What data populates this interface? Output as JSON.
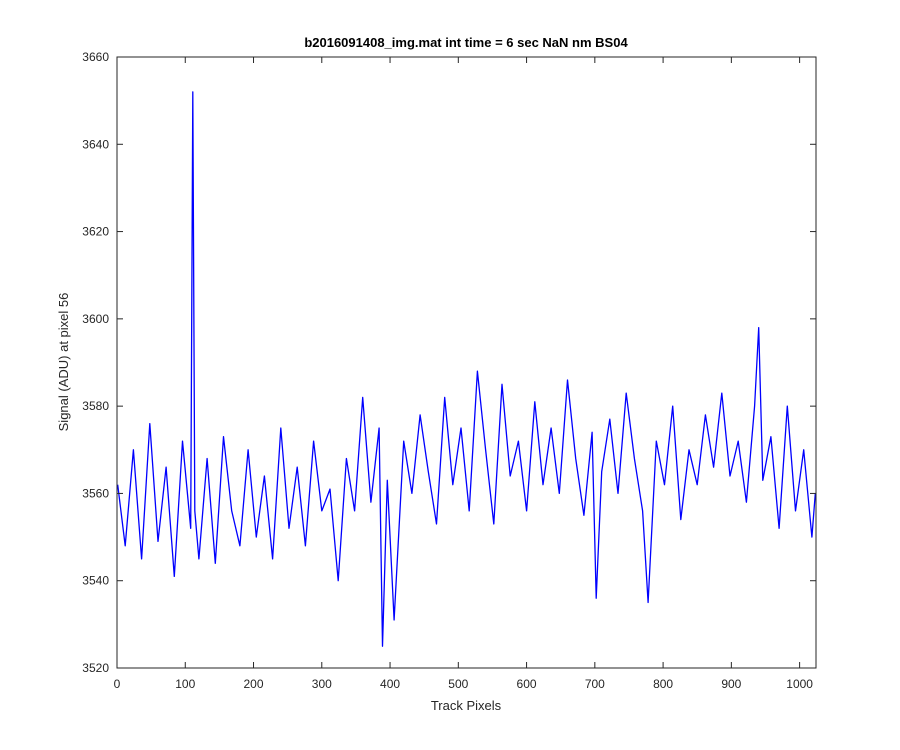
{
  "chart_data": {
    "type": "line",
    "title": "b2016091408_img.mat int time = 6 sec  NaN nm BS04",
    "xlabel": "Track Pixels",
    "ylabel": "Signal (ADU) at pixel 56",
    "xlim": [
      0,
      1024
    ],
    "ylim": [
      3520,
      3660
    ],
    "xticks": [
      0,
      100,
      200,
      300,
      400,
      500,
      600,
      700,
      800,
      900,
      1000
    ],
    "yticks": [
      3520,
      3540,
      3560,
      3580,
      3600,
      3620,
      3640,
      3660
    ],
    "grid": false,
    "legend": "none",
    "line_color": "#0000ff",
    "series": [
      {
        "x": [
          1,
          12,
          24,
          36,
          48,
          60,
          72,
          84,
          96,
          108,
          111,
          114,
          120,
          132,
          144,
          156,
          168,
          180,
          192,
          204,
          216,
          228,
          240,
          252,
          264,
          276,
          288,
          300,
          312,
          324,
          336,
          348,
          360,
          372,
          384,
          389,
          396,
          406,
          420,
          432,
          444,
          456,
          468,
          480,
          492,
          504,
          516,
          528,
          540,
          552,
          564,
          576,
          588,
          600,
          612,
          624,
          636,
          648,
          660,
          672,
          684,
          696,
          702,
          710,
          722,
          734,
          746,
          758,
          770,
          778,
          790,
          802,
          814,
          826,
          838,
          850,
          862,
          874,
          886,
          898,
          910,
          922,
          934,
          940,
          946,
          958,
          970,
          982,
          994,
          1006,
          1018,
          1023
        ],
        "y": [
          3562,
          3548,
          3570,
          3545,
          3576,
          3549,
          3566,
          3541,
          3572,
          3552,
          3652,
          3556,
          3545,
          3568,
          3544,
          3573,
          3556,
          3548,
          3570,
          3550,
          3564,
          3545,
          3575,
          3552,
          3566,
          3548,
          3572,
          3556,
          3561,
          3540,
          3568,
          3556,
          3582,
          3558,
          3575,
          3525,
          3563,
          3531,
          3572,
          3560,
          3578,
          3565,
          3553,
          3582,
          3562,
          3575,
          3556,
          3588,
          3570,
          3553,
          3585,
          3564,
          3572,
          3556,
          3581,
          3562,
          3575,
          3560,
          3586,
          3568,
          3555,
          3574,
          3536,
          3565,
          3577,
          3560,
          3583,
          3568,
          3556,
          3535,
          3572,
          3562,
          3580,
          3554,
          3570,
          3562,
          3578,
          3566,
          3583,
          3564,
          3572,
          3558,
          3580,
          3598,
          3563,
          3573,
          3552,
          3580,
          3556,
          3570,
          3550,
          3560
        ]
      }
    ]
  }
}
